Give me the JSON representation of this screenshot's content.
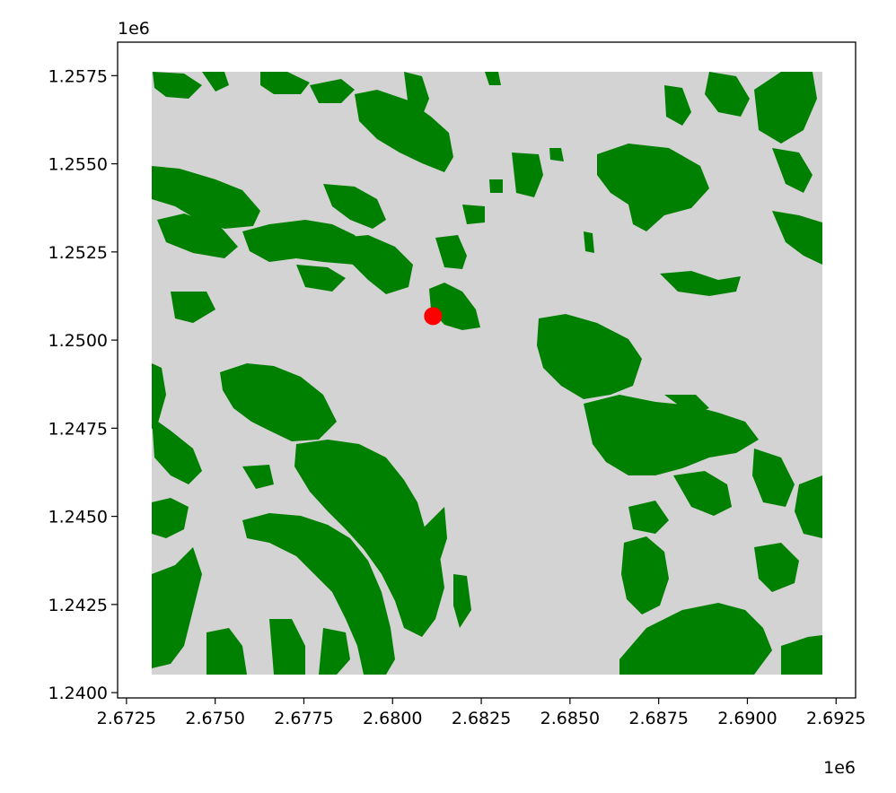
{
  "chart_data": {
    "type": "map",
    "x_offset_label": "1e6",
    "y_offset_label": "1e6",
    "x_ticks": [
      "2.6725",
      "2.6750",
      "2.6775",
      "2.6800",
      "2.6825",
      "2.6850",
      "2.6875",
      "2.6900",
      "2.6925"
    ],
    "y_ticks": [
      "1.2400",
      "1.2425",
      "1.2450",
      "1.2475",
      "1.2500",
      "1.2525",
      "1.2550",
      "1.2575"
    ],
    "x_tick_values": [
      2.6725,
      2.675,
      2.6775,
      2.68,
      2.6825,
      2.685,
      2.6875,
      2.69,
      2.6925
    ],
    "y_tick_values": [
      1.24,
      1.2425,
      1.245,
      1.2475,
      1.25,
      1.2525,
      1.255,
      1.2575
    ],
    "xlim": [
      2.67225,
      2.69305
    ],
    "ylim": [
      1.23985,
      1.25845
    ],
    "extent": {
      "x": [
        2.67333,
        2.692
      ],
      "y": [
        1.2407,
        1.2576
      ]
    },
    "marker": {
      "x": 2.68114,
      "y": 1.25068,
      "color": "#ff0000"
    },
    "colors": {
      "background": "#d3d3d3",
      "forest": "#008000",
      "marker": "#ff0000"
    },
    "grid": false,
    "legend": "none"
  }
}
